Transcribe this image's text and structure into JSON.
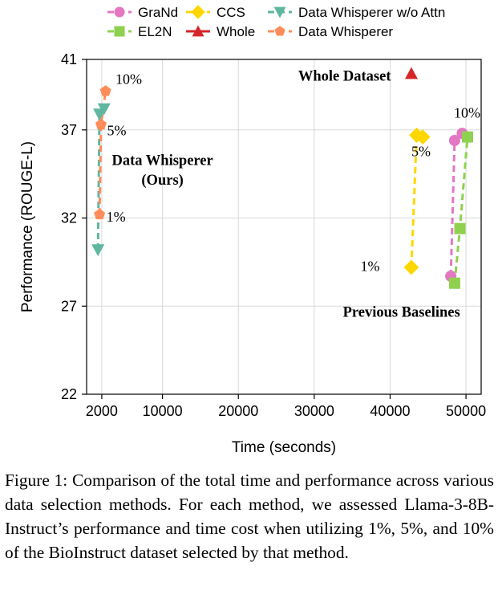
{
  "figure": {
    "caption": "Figure 1: Comparison of the total time and performance across various data selection methods. For each method, we assessed Llama-3-8B-Instruct’s performance and time cost when utilizing 1%, 5%, and 10% of the BioInstruct dataset selected by that method."
  },
  "colors": {
    "grand": "#e377c2",
    "el2n": "#8fd14f",
    "ccs": "#ffd700",
    "whole": "#d62728",
    "dw_no_attn": "#5fb7a0",
    "dw": "#ff8c5a"
  },
  "chart_data": {
    "type": "scatter",
    "xlabel": "Time (seconds)",
    "ylabel": "Performance (ROUGE-L)",
    "xlim": [
      0,
      52000
    ],
    "ylim": [
      22,
      41
    ],
    "xticks": [
      2000,
      10000,
      20000,
      30000,
      40000,
      50000
    ],
    "yticks": [
      22,
      27,
      32,
      37,
      41
    ],
    "xtick_labels": [
      "2000",
      "10000",
      "20000",
      "30000",
      "40000",
      "50000"
    ],
    "ytick_labels": [
      "22",
      "27",
      "32",
      "37",
      "41"
    ],
    "grid": true,
    "legend_position": "top",
    "series": [
      {
        "name": "GraNd",
        "marker": "circle",
        "color_key": "grand",
        "x": [
          48000,
          48500,
          49500
        ],
        "y": [
          28.7,
          36.4,
          36.8
        ],
        "connected": true
      },
      {
        "name": "EL2N",
        "marker": "square",
        "color_key": "el2n",
        "x": [
          48500,
          49200,
          50200
        ],
        "y": [
          28.3,
          31.4,
          36.6
        ],
        "connected": true
      },
      {
        "name": "CCS",
        "marker": "diamond",
        "color_key": "ccs",
        "x": [
          42800,
          43500,
          44300
        ],
        "y": [
          29.2,
          36.7,
          36.6
        ],
        "connected": true
      },
      {
        "name": "Whole",
        "marker": "triangle-up",
        "color_key": "whole",
        "x": [
          42800
        ],
        "y": [
          40.2
        ],
        "connected": false
      },
      {
        "name": "Data Whisperer w/o Attn",
        "marker": "triangle-down",
        "color_key": "dw_no_attn",
        "x": [
          1500,
          1700,
          2300
        ],
        "y": [
          30.2,
          37.9,
          38.2
        ],
        "connected": true
      },
      {
        "name": "Data Whisperer",
        "marker": "pentagon",
        "color_key": "dw",
        "x": [
          1700,
          1900,
          2500
        ],
        "y": [
          32.2,
          37.3,
          39.2
        ],
        "connected": true
      }
    ],
    "annotations": [
      {
        "text": "10%",
        "x": 3800,
        "y": 39.6,
        "style": "normal"
      },
      {
        "text": "5%",
        "x": 2700,
        "y": 36.7,
        "style": "normal"
      },
      {
        "text": "1%",
        "x": 2600,
        "y": 31.8,
        "style": "normal"
      },
      {
        "text": "Data Whisperer",
        "x": 10000,
        "y": 35.0,
        "style": "bold"
      },
      {
        "text": "(Ours)",
        "x": 10000,
        "y": 33.9,
        "style": "bold"
      },
      {
        "text": "Whole Dataset",
        "x": 34000,
        "y": 39.8,
        "style": "bold"
      },
      {
        "text": "10%",
        "x": 48400,
        "y": 37.7,
        "style": "normal"
      },
      {
        "text": "5%",
        "x": 42800,
        "y": 35.5,
        "style": "normal"
      },
      {
        "text": "1%",
        "x": 36100,
        "y": 29.0,
        "style": "normal"
      },
      {
        "text": "Previous Baselines",
        "x": 41500,
        "y": 26.4,
        "style": "bold"
      }
    ]
  }
}
